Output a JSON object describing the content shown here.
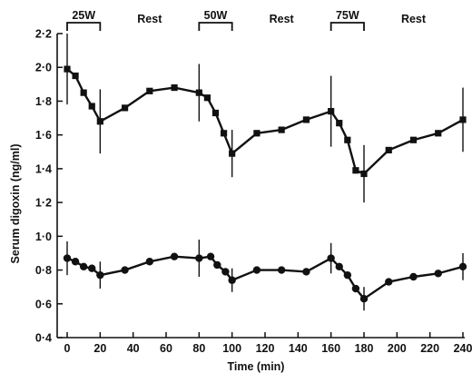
{
  "chart_data": {
    "type": "line",
    "title": "",
    "xlabel": "Time (min)",
    "ylabel": "Serum digoxin (ng/ml)",
    "xlim": [
      0,
      240
    ],
    "ylim": [
      0.4,
      2.2
    ],
    "x_ticks": [
      0,
      20,
      40,
      60,
      80,
      100,
      120,
      140,
      160,
      180,
      200,
      220,
      240
    ],
    "x_tick_labels": [
      "0",
      "20",
      "40",
      "60",
      "80",
      "100",
      "120",
      "140",
      "160",
      "180",
      "200",
      "220",
      "240"
    ],
    "y_ticks": [
      0.4,
      0.6,
      0.8,
      1.0,
      1.2,
      1.4,
      1.6,
      1.8,
      2.0,
      2.2
    ],
    "y_tick_labels": [
      "0·4",
      "0·6",
      "0·8",
      "1·0",
      "1·2",
      "1·4",
      "1·6",
      "1·8",
      "2·0",
      "2·2"
    ],
    "grid": false,
    "legend": "none",
    "phases": [
      {
        "label": "25W",
        "start": 0,
        "end": 20,
        "bracket": true
      },
      {
        "label": "Rest",
        "start": 20,
        "end": 80,
        "bracket": false
      },
      {
        "label": "50W",
        "start": 80,
        "end": 100,
        "bracket": true
      },
      {
        "label": "Rest",
        "start": 100,
        "end": 160,
        "bracket": false
      },
      {
        "label": "75W",
        "start": 160,
        "end": 180,
        "bracket": true
      },
      {
        "label": "Rest",
        "start": 180,
        "end": 240,
        "bracket": false
      }
    ],
    "series": [
      {
        "marker": "square",
        "color": "#111111",
        "points": [
          {
            "x": 0,
            "y": 1.99,
            "err": 0.21
          },
          {
            "x": 5,
            "y": 1.95
          },
          {
            "x": 10,
            "y": 1.85
          },
          {
            "x": 15,
            "y": 1.77
          },
          {
            "x": 20,
            "y": 1.68,
            "err": 0.19
          },
          {
            "x": 35,
            "y": 1.76
          },
          {
            "x": 50,
            "y": 1.86
          },
          {
            "x": 65,
            "y": 1.88
          },
          {
            "x": 80,
            "y": 1.85,
            "err": 0.17
          },
          {
            "x": 85,
            "y": 1.82
          },
          {
            "x": 90,
            "y": 1.73
          },
          {
            "x": 95,
            "y": 1.61
          },
          {
            "x": 100,
            "y": 1.49,
            "err": 0.14
          },
          {
            "x": 115,
            "y": 1.61
          },
          {
            "x": 130,
            "y": 1.63
          },
          {
            "x": 145,
            "y": 1.69
          },
          {
            "x": 160,
            "y": 1.74,
            "err": 0.21
          },
          {
            "x": 165,
            "y": 1.67
          },
          {
            "x": 170,
            "y": 1.57
          },
          {
            "x": 175,
            "y": 1.39
          },
          {
            "x": 180,
            "y": 1.37,
            "err": 0.17
          },
          {
            "x": 195,
            "y": 1.51
          },
          {
            "x": 210,
            "y": 1.57
          },
          {
            "x": 225,
            "y": 1.61
          },
          {
            "x": 240,
            "y": 1.69,
            "err": 0.19
          }
        ]
      },
      {
        "marker": "circle",
        "color": "#111111",
        "points": [
          {
            "x": 0,
            "y": 0.87,
            "err": 0.1
          },
          {
            "x": 5,
            "y": 0.85
          },
          {
            "x": 10,
            "y": 0.82
          },
          {
            "x": 15,
            "y": 0.81
          },
          {
            "x": 20,
            "y": 0.77,
            "err": 0.08
          },
          {
            "x": 35,
            "y": 0.8
          },
          {
            "x": 50,
            "y": 0.85
          },
          {
            "x": 65,
            "y": 0.88
          },
          {
            "x": 80,
            "y": 0.87,
            "err": 0.11
          },
          {
            "x": 87,
            "y": 0.88
          },
          {
            "x": 91,
            "y": 0.83
          },
          {
            "x": 96,
            "y": 0.79
          },
          {
            "x": 100,
            "y": 0.74,
            "err": 0.07
          },
          {
            "x": 115,
            "y": 0.8
          },
          {
            "x": 130,
            "y": 0.8
          },
          {
            "x": 145,
            "y": 0.79
          },
          {
            "x": 160,
            "y": 0.87,
            "err": 0.09
          },
          {
            "x": 165,
            "y": 0.82
          },
          {
            "x": 170,
            "y": 0.77
          },
          {
            "x": 175,
            "y": 0.69
          },
          {
            "x": 180,
            "y": 0.63,
            "err": 0.07
          },
          {
            "x": 195,
            "y": 0.73
          },
          {
            "x": 210,
            "y": 0.76
          },
          {
            "x": 225,
            "y": 0.78
          },
          {
            "x": 240,
            "y": 0.82,
            "err": 0.08
          }
        ]
      }
    ]
  }
}
